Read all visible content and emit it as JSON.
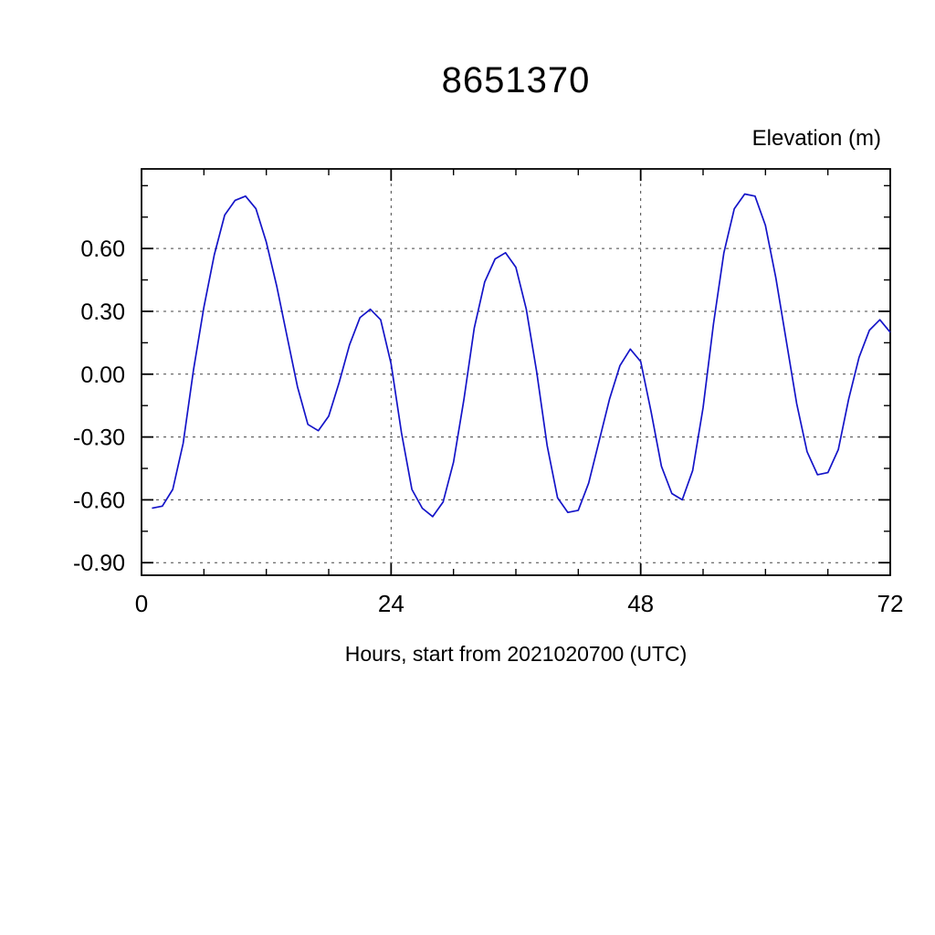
{
  "page": {
    "background": "#ffffff"
  },
  "chart_data": {
    "type": "line",
    "title": "8651370",
    "ylabel": "Elevation (m)",
    "xlabel": "Hours, start from 2021020700 (UTC)",
    "x_start": 1,
    "x_step": 1,
    "values": [
      -0.64,
      -0.63,
      -0.55,
      -0.33,
      0.02,
      0.32,
      0.57,
      0.76,
      0.83,
      0.85,
      0.79,
      0.63,
      0.42,
      0.18,
      -0.06,
      -0.24,
      -0.27,
      -0.2,
      -0.04,
      0.14,
      0.27,
      0.31,
      0.26,
      0.05,
      -0.28,
      -0.55,
      -0.64,
      -0.68,
      -0.61,
      -0.42,
      -0.12,
      0.22,
      0.44,
      0.55,
      0.58,
      0.51,
      0.31,
      0.01,
      -0.34,
      -0.59,
      -0.66,
      -0.65,
      -0.52,
      -0.32,
      -0.12,
      0.04,
      0.12,
      0.06,
      -0.18,
      -0.44,
      -0.57,
      -0.6,
      -0.46,
      -0.16,
      0.24,
      0.58,
      0.79,
      0.86,
      0.85,
      0.71,
      0.46,
      0.16,
      -0.14,
      -0.37,
      -0.48,
      -0.47,
      -0.36,
      -0.12,
      0.08,
      0.21,
      0.26,
      0.2
    ],
    "xlim": [
      0,
      72
    ],
    "ylim": [
      -0.96,
      0.98
    ],
    "xticks": [
      0,
      24,
      48,
      72
    ],
    "xtick_labels": [
      "0",
      "24",
      "48",
      "72"
    ],
    "xticks_minor": [
      6,
      12,
      18,
      30,
      36,
      42,
      54,
      60,
      66
    ],
    "yticks": [
      0.6,
      0.3,
      0.0,
      -0.3,
      -0.6,
      -0.9
    ],
    "ytick_labels": [
      "0.60",
      "0.30",
      "0.00",
      "-0.30",
      "-0.60",
      "-0.90"
    ],
    "yticks_minor": [
      0.9,
      0.75,
      0.45,
      0.15,
      -0.15,
      -0.45,
      -0.75
    ],
    "grid_xticks": [
      24,
      48
    ],
    "grid_yticks": [
      0.6,
      0.3,
      0.0,
      -0.3,
      -0.6,
      -0.9
    ],
    "grid_on": true,
    "line_color": "#1414c8",
    "grid_color": "#444444",
    "axis_color": "#000000"
  }
}
